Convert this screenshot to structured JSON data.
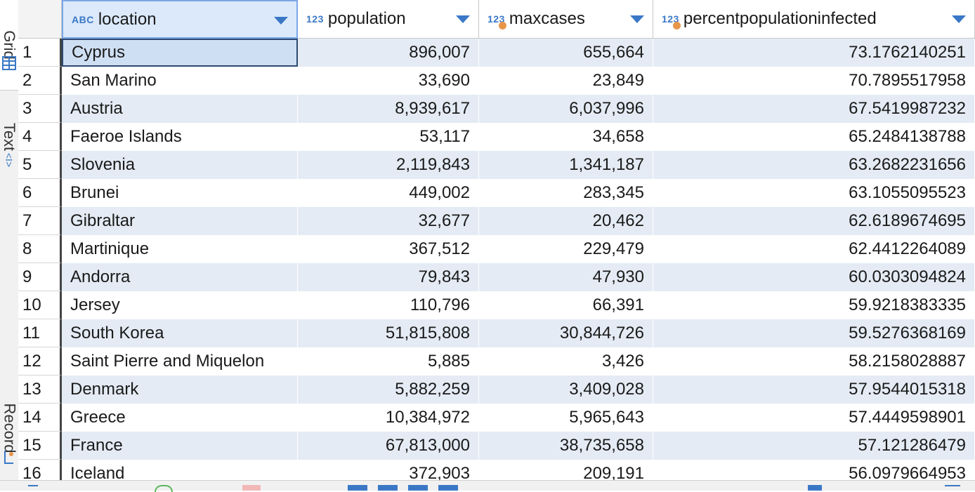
{
  "side_tabs": [
    {
      "label": "Grid",
      "icon": "grid-icon"
    },
    {
      "label": "Text",
      "icon": "text-icon"
    },
    {
      "label": "Record",
      "icon": "record-icon"
    }
  ],
  "columns": [
    {
      "key": "location",
      "label": "location",
      "type": "ABC"
    },
    {
      "key": "population",
      "label": "population",
      "type": "123"
    },
    {
      "key": "maxcases",
      "label": "maxcases",
      "type": "123"
    },
    {
      "key": "percentpopulationinfected",
      "label": "percentpopulationinfected",
      "type": "123"
    }
  ],
  "rows": [
    {
      "n": "1",
      "location": "Cyprus",
      "population": "896,007",
      "maxcases": "655,664",
      "pct": "73.1762140251"
    },
    {
      "n": "2",
      "location": "San Marino",
      "population": "33,690",
      "maxcases": "23,849",
      "pct": "70.7895517958"
    },
    {
      "n": "3",
      "location": "Austria",
      "population": "8,939,617",
      "maxcases": "6,037,996",
      "pct": "67.5419987232"
    },
    {
      "n": "4",
      "location": "Faeroe Islands",
      "population": "53,117",
      "maxcases": "34,658",
      "pct": "65.2484138788"
    },
    {
      "n": "5",
      "location": "Slovenia",
      "population": "2,119,843",
      "maxcases": "1,341,187",
      "pct": "63.2682231656"
    },
    {
      "n": "6",
      "location": "Brunei",
      "population": "449,002",
      "maxcases": "283,345",
      "pct": "63.1055095523"
    },
    {
      "n": "7",
      "location": "Gibraltar",
      "population": "32,677",
      "maxcases": "20,462",
      "pct": "62.6189674695"
    },
    {
      "n": "8",
      "location": "Martinique",
      "population": "367,512",
      "maxcases": "229,479",
      "pct": "62.4412264089"
    },
    {
      "n": "9",
      "location": "Andorra",
      "population": "79,843",
      "maxcases": "47,930",
      "pct": "60.0303094824"
    },
    {
      "n": "10",
      "location": "Jersey",
      "population": "110,796",
      "maxcases": "66,391",
      "pct": "59.9218383335"
    },
    {
      "n": "11",
      "location": "South Korea",
      "population": "51,815,808",
      "maxcases": "30,844,726",
      "pct": "59.5276368169"
    },
    {
      "n": "12",
      "location": "Saint Pierre and Miquelon",
      "population": "5,885",
      "maxcases": "3,426",
      "pct": "58.2158028887"
    },
    {
      "n": "13",
      "location": "Denmark",
      "population": "5,882,259",
      "maxcases": "3,409,028",
      "pct": "57.9544015318"
    },
    {
      "n": "14",
      "location": "Greece",
      "population": "10,384,972",
      "maxcases": "5,965,643",
      "pct": "57.4449598901"
    },
    {
      "n": "15",
      "location": "France",
      "population": "67,813,000",
      "maxcases": "38,735,658",
      "pct": "57.121286479"
    },
    {
      "n": "16",
      "location": "Iceland",
      "population": "372,903",
      "maxcases": "209,191",
      "pct": "56.0979664953"
    }
  ],
  "colors": {
    "accent": "#3a78c6",
    "row_alt": "#e4ebf4",
    "selected": "#cfdff3"
  }
}
